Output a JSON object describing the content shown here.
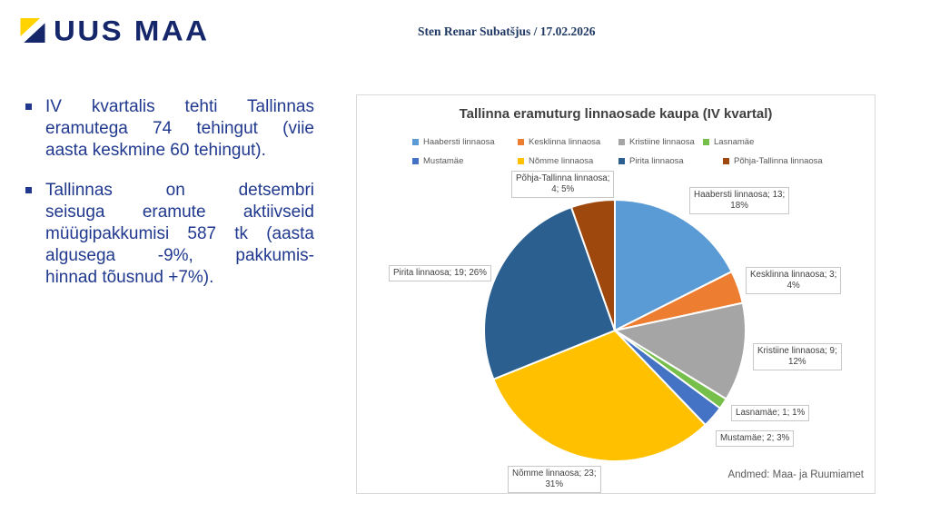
{
  "header": {
    "logo_text": "UUS MAA",
    "author_line": "Sten Renar Subatšjus / 17.02.2026"
  },
  "accent_colors": {
    "logo_navy": "#15266B",
    "logo_yellow": "#FFD200",
    "bullet_text_blue": "#20398F"
  },
  "bullets": [
    {
      "text": "IV kvartalis tehti Tallinnas eramutega 74 tehingut (viie aasta keskmine 60 tehingut).",
      "lines": [
        "IV kvartalis tehti Tallinnas",
        "eramutega 74 tehingut (viie",
        "aasta keskmine 60 tehingut)."
      ]
    },
    {
      "text": "Tallinnas on detsembri seisuga eramute aktiivseid müügipakkumisi 587 tk (aasta algusega -9%, pakkumis-hinnad tõusnud +7%).",
      "lines": [
        "Tallinnas on detsembri",
        "seisuga eramute aktiivseid",
        "müügipakkumisi 587 tk (aasta",
        "algusega -9%, pakkumis-",
        "hinnad tõusnud +7%)."
      ]
    }
  ],
  "chart_data": {
    "type": "pie",
    "title": "Tallinna eramuturg linnaosade kaupa (IV kvartal)",
    "categories": [
      "Haabersti linnaosa",
      "Kesklinna linnaosa",
      "Kristiine linnaosa",
      "Lasnamäe",
      "Mustamäe",
      "Nõmme linnaosa",
      "Pirita linnaosa",
      "Põhja-Tallinna linnaosa"
    ],
    "values": [
      13,
      3,
      9,
      1,
      2,
      23,
      19,
      4
    ],
    "percents": [
      18,
      4,
      12,
      1,
      3,
      31,
      26,
      5
    ],
    "total": 74,
    "colors": [
      "#5B9BD5",
      "#ED7D31",
      "#A5A5A5",
      "#77BF4B",
      "#4472C4",
      "#FFC000",
      "#2A5F8F",
      "#9E480E"
    ],
    "start_angle_deg": 0,
    "direction": "clockwise",
    "legend_position": "top",
    "data_labels_format": "name; value; percent%",
    "source": "Andmed: Maa- ja Ruumiamet"
  }
}
